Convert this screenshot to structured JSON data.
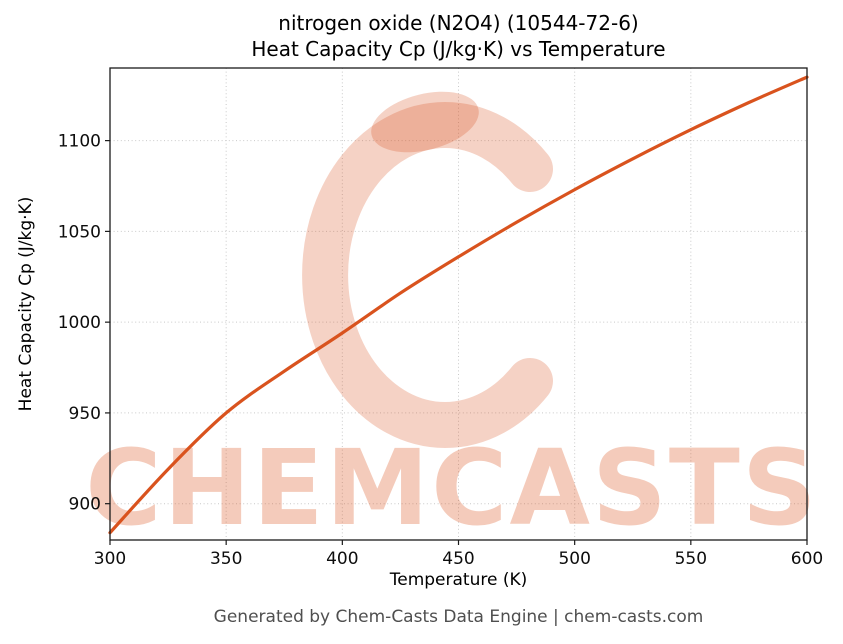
{
  "chart_data": {
    "type": "line",
    "title_lines": [
      "nitrogen oxide (N2O4) (10544-72-6)",
      "Heat Capacity Cp (J/kg·K) vs Temperature"
    ],
    "xlabel": "Temperature (K)",
    "ylabel": "Heat Capacity Cp (J/kg·K)",
    "xlim": [
      300,
      600
    ],
    "ylim": [
      880,
      1140
    ],
    "x_ticks": [
      300,
      350,
      400,
      450,
      500,
      550,
      600
    ],
    "y_ticks": [
      900,
      950,
      1000,
      1050,
      1100
    ],
    "grid": true,
    "legend": "none",
    "series": [
      {
        "name": "Heat Capacity Cp",
        "color": "#d9531e",
        "x": [
          300,
          325,
          350,
          375,
          400,
          425,
          450,
          475,
          500,
          525,
          550,
          575,
          600
        ],
        "y": [
          884,
          919,
          950,
          973,
          994,
          1016,
          1036,
          1055,
          1073,
          1090,
          1106,
          1121,
          1135
        ]
      }
    ]
  },
  "watermark": {
    "text": "CHEMCASTS",
    "color": "#d9531e"
  },
  "footer": {
    "text": "Generated by Chem-Casts Data Engine | chem-casts.com"
  }
}
